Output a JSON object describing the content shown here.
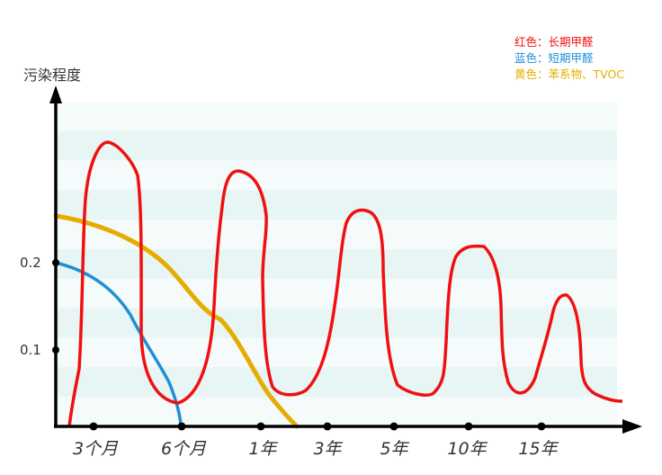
{
  "y_axis_title": "污染程度",
  "y_ticks": [
    "0.2",
    "0.1"
  ],
  "x_ticks": [
    "3个月",
    "6个月",
    "1年",
    "3年",
    "5年",
    "10年",
    "15年"
  ],
  "legend": [
    {
      "text": "红色：长期甲醛",
      "color": "#f01010"
    },
    {
      "text": "蓝色：短期甲醛",
      "color": "#1e8fd6"
    },
    {
      "text": "黄色：苯系物、TVOC",
      "color": "#e6ad00"
    }
  ],
  "colors": {
    "red": "#f01010",
    "blue": "#1e8fd6",
    "yellow": "#e6ad00",
    "band_light": "#f5fafa",
    "band_dark": "#e8f5f5"
  }
}
